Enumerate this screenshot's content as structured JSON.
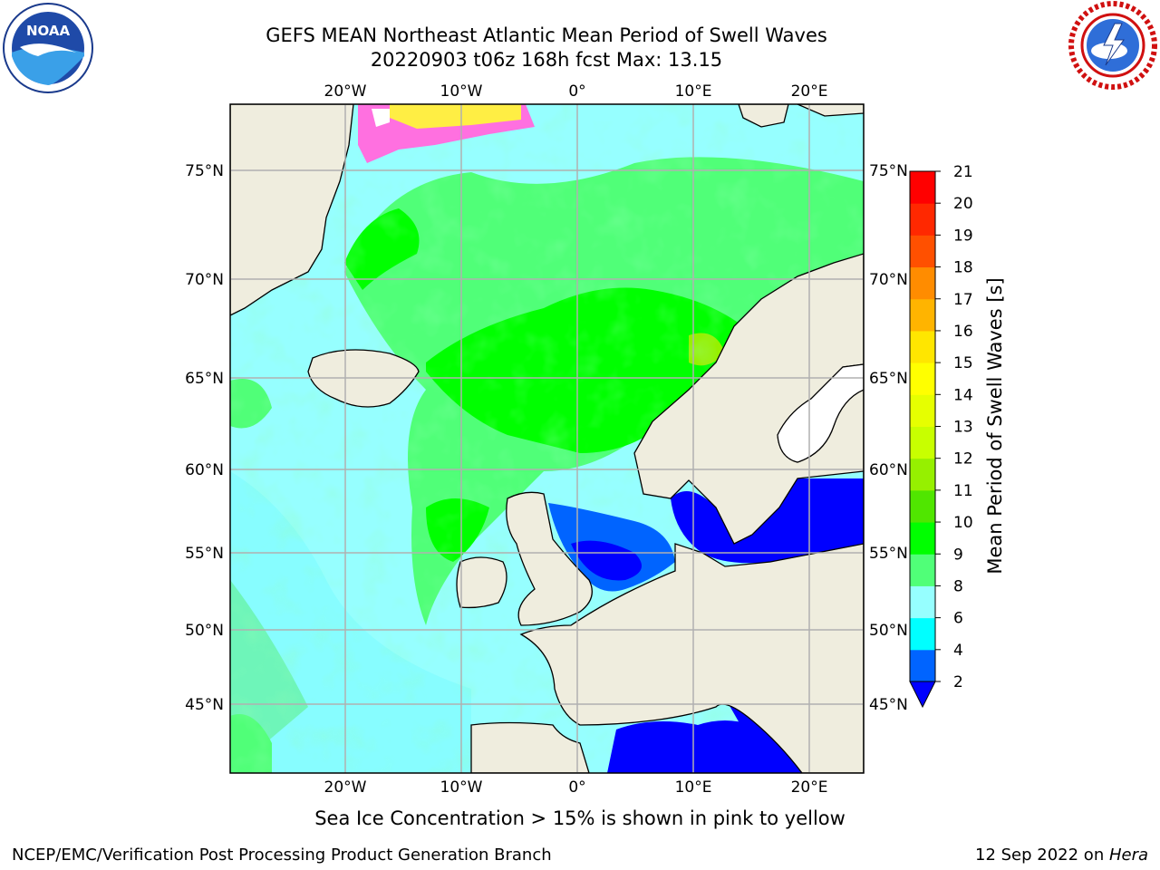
{
  "title_line1": "GEFS MEAN Northeast Atlantic Mean Period of Swell Waves",
  "title_line2": "20220903 t06z 168h fcst   Max: 13.15",
  "caption": "Sea Ice Concentration > 15% is shown in pink to yellow",
  "footer": {
    "left": "NCEP/EMC/Verification Post Processing Product Generation Branch",
    "date": "12 Sep 2022 on ",
    "machine": "Hera"
  },
  "logos": {
    "left": "noaa-logo",
    "right": "national-weather-service-logo"
  },
  "map": {
    "lon_labels": [
      "20°W",
      "10°W",
      "0°",
      "10°E",
      "20°E"
    ],
    "lat_labels": [
      "75°N",
      "70°N",
      "65°N",
      "60°N",
      "55°N",
      "50°N",
      "45°N"
    ]
  },
  "colorbar": {
    "label": "Mean Period of Swell Waves [s]",
    "ticks": [
      "2",
      "4",
      "6",
      "8",
      "9",
      "10",
      "11",
      "12",
      "13",
      "14",
      "15",
      "16",
      "17",
      "18",
      "19",
      "20",
      "21"
    ],
    "colors": [
      "#0064ff",
      "#00c8ff",
      "#00ffff",
      "#96ffff",
      "#50ff78",
      "#00ff00",
      "#50e600",
      "#96f000",
      "#c8ff00",
      "#e6ff00",
      "#ffff00",
      "#ffe600",
      "#ffb400",
      "#ff8c00",
      "#ff5000",
      "#ff2800",
      "#ff0000"
    ],
    "extend_color": "#0000ff"
  },
  "palette": {
    "land": "#efedde",
    "ocean_base": "#96ffff",
    "ice_pink": "#ff70e0",
    "ice_yellow": "#ffee44"
  }
}
